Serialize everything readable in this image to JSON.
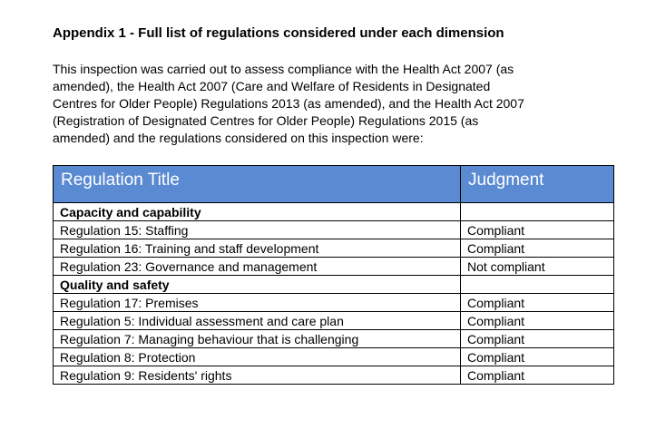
{
  "page": {
    "heading": "Appendix 1 - Full list of regulations considered under each dimension",
    "intro_lines": [
      "This inspection was carried out to assess compliance with the Health Act 2007 (as",
      "amended), the Health Act 2007 (Care and Welfare of Residents in Designated",
      "Centres for Older People) Regulations 2013 (as amended), and the Health Act 2007",
      "(Registration of Designated Centres for Older People) Regulations 2015 (as",
      "amended) and the regulations considered on this inspection were:"
    ]
  },
  "table": {
    "headers": [
      "Regulation Title",
      "Judgment"
    ],
    "colors": {
      "header_bg": "#5A8AD2",
      "header_text": "#FFFFFF",
      "border": "#000000"
    },
    "rows": [
      {
        "type": "section",
        "title": "Capacity and capability",
        "judgment": ""
      },
      {
        "type": "item",
        "title": "Regulation 15: Staffing",
        "judgment": "Compliant"
      },
      {
        "type": "item",
        "title": "Regulation 16: Training and staff development",
        "judgment": "Compliant"
      },
      {
        "type": "item",
        "title": "Regulation 23: Governance and management",
        "judgment": "Not compliant"
      },
      {
        "type": "section",
        "title": "Quality and safety",
        "judgment": ""
      },
      {
        "type": "item",
        "title": "Regulation 17: Premises",
        "judgment": "Compliant"
      },
      {
        "type": "item",
        "title": "Regulation 5: Individual assessment and care plan",
        "judgment": "Compliant"
      },
      {
        "type": "item",
        "title": "Regulation 7: Managing behaviour that is challenging",
        "judgment": "Compliant"
      },
      {
        "type": "item",
        "title": "Regulation 8: Protection",
        "judgment": "Compliant"
      },
      {
        "type": "item",
        "title": "Regulation 9: Residents' rights",
        "judgment": "Compliant"
      }
    ]
  }
}
